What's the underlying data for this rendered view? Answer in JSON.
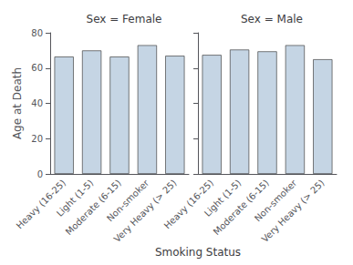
{
  "chart_data": [
    {
      "type": "bar",
      "title": "Sex = Female",
      "categories": [
        "Heavy (16-25)",
        "Light (1-5)",
        "Moderate (6-15)",
        "Non-smoker",
        "Very Heavy (> 25)"
      ],
      "values": [
        66.5,
        70.0,
        66.5,
        73.0,
        67.0
      ],
      "color": "#c5d5e4",
      "y_label": "Age at Death",
      "x_label": "Smoking Status",
      "ylim": [
        0,
        80
      ],
      "yticks": [
        0,
        20,
        40,
        60,
        80
      ],
      "grid": false
    },
    {
      "type": "bar",
      "title": "Sex = Male",
      "categories": [
        "Heavy (16-25)",
        "Light (1-5)",
        "Moderate (6-15)",
        "Non-smoker",
        "Very Heavy (> 25)"
      ],
      "values": [
        67.5,
        70.5,
        69.5,
        73.0,
        65.0
      ],
      "color": "#c5d5e4",
      "ylim": [
        0,
        80
      ],
      "yticks": [
        0,
        20,
        40,
        60,
        80
      ],
      "grid": false,
      "tick_labels": "x"
    }
  ]
}
